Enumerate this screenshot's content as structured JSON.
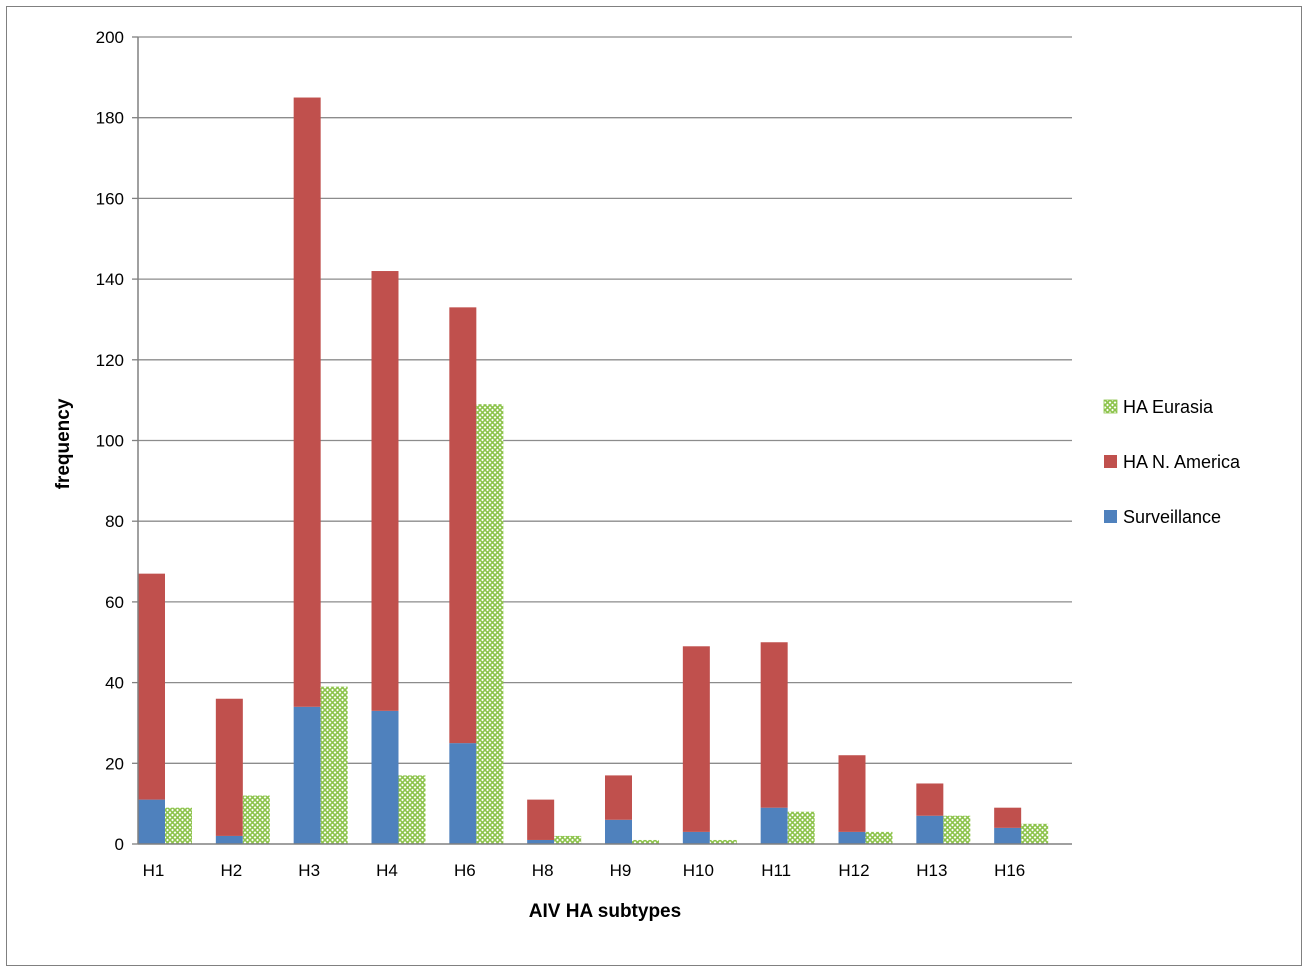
{
  "chart_data": {
    "type": "bar",
    "subtype": "stacked-and-clustered",
    "title": "",
    "xlabel": "AIV HA subtypes",
    "ylabel": "frequency",
    "ylim": [
      0,
      200
    ],
    "yticks": [
      0,
      20,
      40,
      60,
      80,
      100,
      120,
      140,
      160,
      180,
      200
    ],
    "grid": true,
    "legend_position": "right",
    "categories": [
      "H1",
      "H2",
      "H3",
      "H4",
      "H6",
      "H8",
      "H9",
      "H10",
      "H11",
      "H12",
      "H13",
      "H16"
    ],
    "series": [
      {
        "name": "Surveillance",
        "color": "#4f81bd",
        "stack": "A",
        "values": [
          11,
          2,
          34,
          33,
          25,
          1,
          6,
          3,
          9,
          3,
          7,
          4
        ]
      },
      {
        "name": "HA N. America",
        "color": "#c0504d",
        "stack": "A",
        "values": [
          56,
          34,
          151,
          109,
          108,
          10,
          11,
          46,
          41,
          19,
          8,
          5
        ]
      },
      {
        "name": "HA Eurasia",
        "color": "#9bbb59",
        "pattern": "crosshatch",
        "stack": "B",
        "values": [
          9,
          12,
          39,
          17,
          109,
          2,
          1,
          1,
          8,
          3,
          7,
          5
        ]
      }
    ],
    "legend_order": [
      "HA Eurasia",
      "HA N. America",
      "Surveillance"
    ]
  }
}
